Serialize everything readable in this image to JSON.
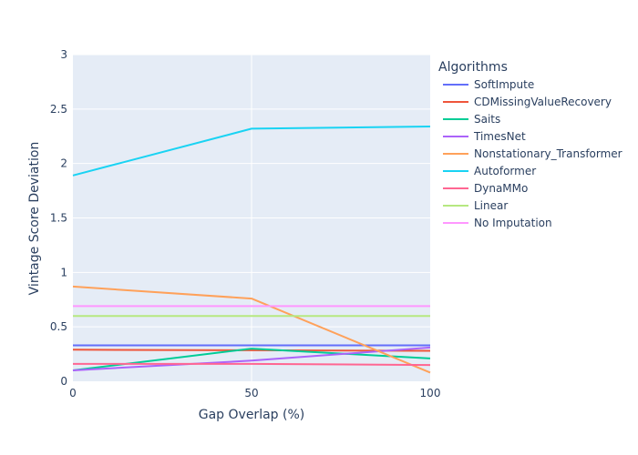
{
  "chart_data": {
    "type": "line",
    "title": "",
    "xlabel": "Gap Overlap (%)",
    "ylabel": "Vintage Score Deviation",
    "x": [
      0,
      50,
      100
    ],
    "xticks": [
      "0",
      "50",
      "100"
    ],
    "yticks": [
      "0",
      "0.5",
      "1",
      "1.5",
      "2",
      "2.5",
      "3"
    ],
    "xlim": [
      0,
      100
    ],
    "ylim": [
      0,
      3
    ],
    "grid": true,
    "plot_background": "#E5ECF6",
    "legend": {
      "title": "Algorithms",
      "position": "right"
    },
    "series": [
      {
        "name": "SoftImpute",
        "color": "#636EFA",
        "values": [
          0.33,
          0.33,
          0.33
        ]
      },
      {
        "name": "CDMissingValueRecovery",
        "color": "#EF553B",
        "values": [
          0.29,
          0.285,
          0.28
        ]
      },
      {
        "name": "Saits",
        "color": "#00CC96",
        "values": [
          0.1,
          0.3,
          0.21
        ]
      },
      {
        "name": "TimesNet",
        "color": "#AB63FA",
        "values": [
          0.1,
          0.19,
          0.31
        ]
      },
      {
        "name": "Nonstationary_Transformer",
        "color": "#FFA15A",
        "values": [
          0.87,
          0.76,
          0.08
        ]
      },
      {
        "name": "Autoformer",
        "color": "#19D3F3",
        "values": [
          1.89,
          2.32,
          2.34
        ]
      },
      {
        "name": "DynaMMo",
        "color": "#FF6692",
        "values": [
          0.16,
          0.16,
          0.15
        ]
      },
      {
        "name": "Linear",
        "color": "#B6E880",
        "values": [
          0.6,
          0.6,
          0.6
        ]
      },
      {
        "name": "No Imputation",
        "color": "#FF97FF",
        "values": [
          0.69,
          0.69,
          0.69
        ]
      }
    ]
  }
}
